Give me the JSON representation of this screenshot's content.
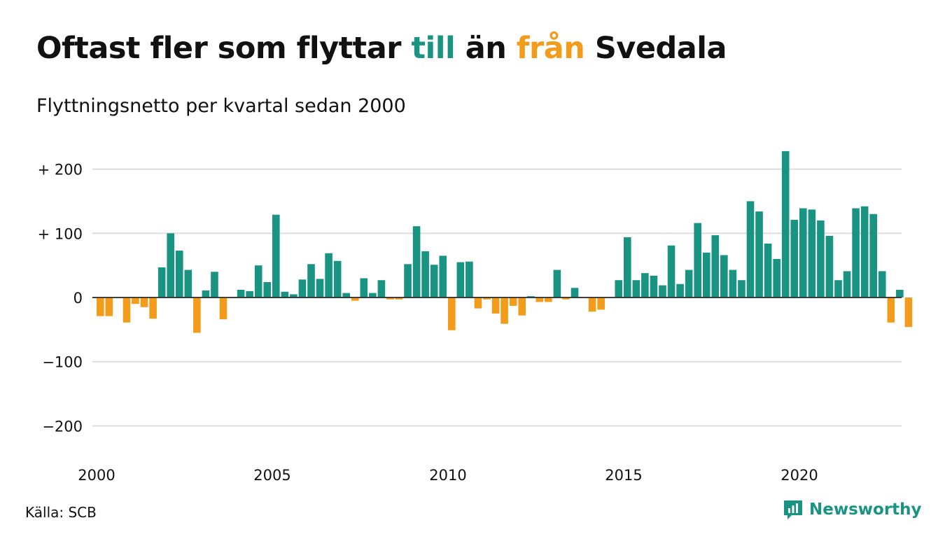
{
  "header": {
    "title_parts": [
      "Oftast fler som flyttar ",
      "till",
      " än ",
      "från",
      " Svedala"
    ],
    "subtitle": "Flyttningsnetto per kvartal sedan 2000"
  },
  "footer": {
    "source": "Källa: SCB",
    "brand": "Newsworthy"
  },
  "colors": {
    "inflow": "#1a9482",
    "outflow": "#f39c1c",
    "grid": "#dddddd",
    "zero": "#222222"
  },
  "chart_data": {
    "type": "bar",
    "title": "Oftast fler som flyttar till än från Svedala",
    "subtitle": "Flyttningsnetto per kvartal sedan 2000",
    "xlabel": "",
    "ylabel": "",
    "x_start": "2000-Q1",
    "ylim": [
      -240,
      240
    ],
    "y_ticks": [
      200,
      100,
      0,
      -100,
      -200
    ],
    "y_tick_labels": [
      "+ 200",
      "+ 100",
      "0",
      "−100",
      "−200"
    ],
    "x_ticks": [
      "2000",
      "2005",
      "2010",
      "2015",
      "2020"
    ],
    "grid": true,
    "values": [
      -29,
      -29,
      0,
      -39,
      -10,
      -15,
      -33,
      47,
      100,
      73,
      43,
      -55,
      11,
      40,
      -34,
      0,
      12,
      10,
      50,
      24,
      129,
      9,
      5,
      28,
      52,
      29,
      69,
      57,
      7,
      -5,
      30,
      7,
      27,
      -3,
      -3,
      52,
      111,
      72,
      51,
      65,
      -51,
      55,
      56,
      -17,
      -3,
      -25,
      -41,
      -13,
      -28,
      2,
      -7,
      -7,
      43,
      -3,
      15,
      0,
      -22,
      -19,
      0,
      27,
      94,
      27,
      38,
      34,
      19,
      81,
      21,
      43,
      116,
      70,
      97,
      66,
      43,
      27,
      150,
      134,
      84,
      60,
      228,
      121,
      139,
      137,
      120,
      96,
      27,
      41,
      139,
      142,
      130,
      41,
      -39,
      12,
      -46
    ]
  }
}
